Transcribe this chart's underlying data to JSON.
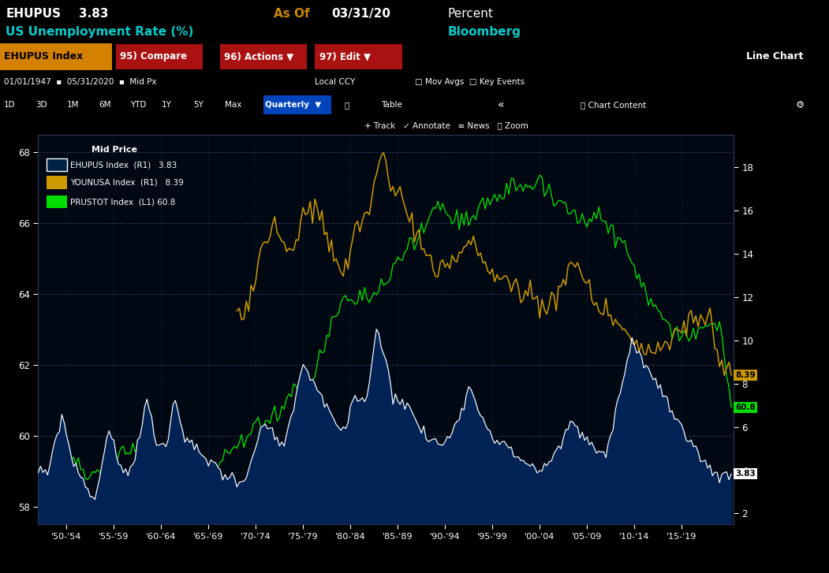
{
  "title_ehupus": "EHUPUS",
  "title_value": "3.83",
  "title_as_of": "As Of",
  "title_date": "03/31/20",
  "title_percent": "Percent",
  "title_line2": "US Unemployment Rate (%)",
  "title_bloomberg": "Bloomberg",
  "legend_title": "Mid Price",
  "left_ylim": [
    57.5,
    68.5
  ],
  "right_ylim": [
    1.5,
    19.5
  ],
  "left_yticks": [
    58.0,
    60.0,
    62.0,
    64.0,
    66.0,
    68.0
  ],
  "right_yticks": [
    2.0,
    4.0,
    6.0,
    8.0,
    10.0,
    12.0,
    14.0,
    16.0,
    18.0
  ],
  "xtick_labels": [
    "'50-'54",
    "'55-'59",
    "'60-'64",
    "'65-'69",
    "'70-'74",
    "'75-'79",
    "'80-'84",
    "'85-'89",
    "'90-'94",
    "'95-'99",
    "'00-'04",
    "'05-'09",
    "'10-'14",
    "'15-'19"
  ],
  "xtick_positions": [
    1950,
    1955,
    1960,
    1965,
    1970,
    1975,
    1980,
    1985,
    1990,
    1995,
    2000,
    2005,
    2010,
    2015
  ],
  "bg_color": "#000000",
  "plot_bg": "#000814",
  "fill_color": "#002244",
  "gold_color": "#cc9900",
  "green_color": "#00dd00",
  "white_color": "#ffffff",
  "grid_color": "#2a2a4a",
  "toolbar_bg": "#8b0000",
  "nav_bg": "#111122",
  "current_green": "60.8",
  "current_gold": "8.39",
  "current_white": "3.83"
}
